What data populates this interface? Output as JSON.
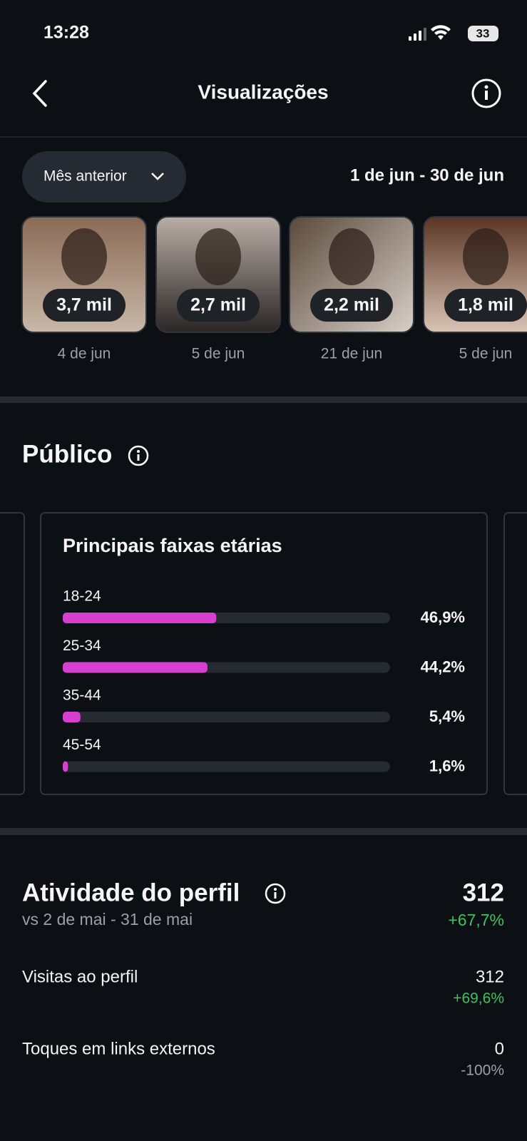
{
  "status_bar": {
    "time": "13:28",
    "battery": "33"
  },
  "header": {
    "title": "Visualizações"
  },
  "filter": {
    "period": "Mês anterior",
    "range": "1 de jun - 30 de jun"
  },
  "posts": [
    {
      "views": "3,7 mil",
      "date": "4 de jun"
    },
    {
      "views": "2,7 mil",
      "date": "5 de jun"
    },
    {
      "views": "2,2 mil",
      "date": "21 de jun"
    },
    {
      "views": "1,8 mil",
      "date": "5 de jun"
    }
  ],
  "audience": {
    "title": "Público",
    "age_chart": {
      "type": "bar",
      "title": "Principais faixas etárias",
      "categories": [
        "18-24",
        "25-34",
        "35-44",
        "45-54"
      ],
      "values": [
        46.9,
        44.2,
        5.4,
        1.6
      ],
      "value_labels": [
        "46,9%",
        "44,2%",
        "5,4%",
        "1,6%"
      ],
      "color": "#d63fd0",
      "xlim": [
        0,
        100
      ]
    }
  },
  "activity": {
    "title": "Atividade do perfil",
    "comparison": "vs 2 de mai - 31 de mai",
    "total": 312,
    "total_change": "+67,7%",
    "rows": [
      {
        "label": "Visitas ao perfil",
        "value": 312,
        "change": "+69,6%"
      },
      {
        "label": "Toques em links externos",
        "value": 0,
        "change": "-100%"
      }
    ]
  }
}
